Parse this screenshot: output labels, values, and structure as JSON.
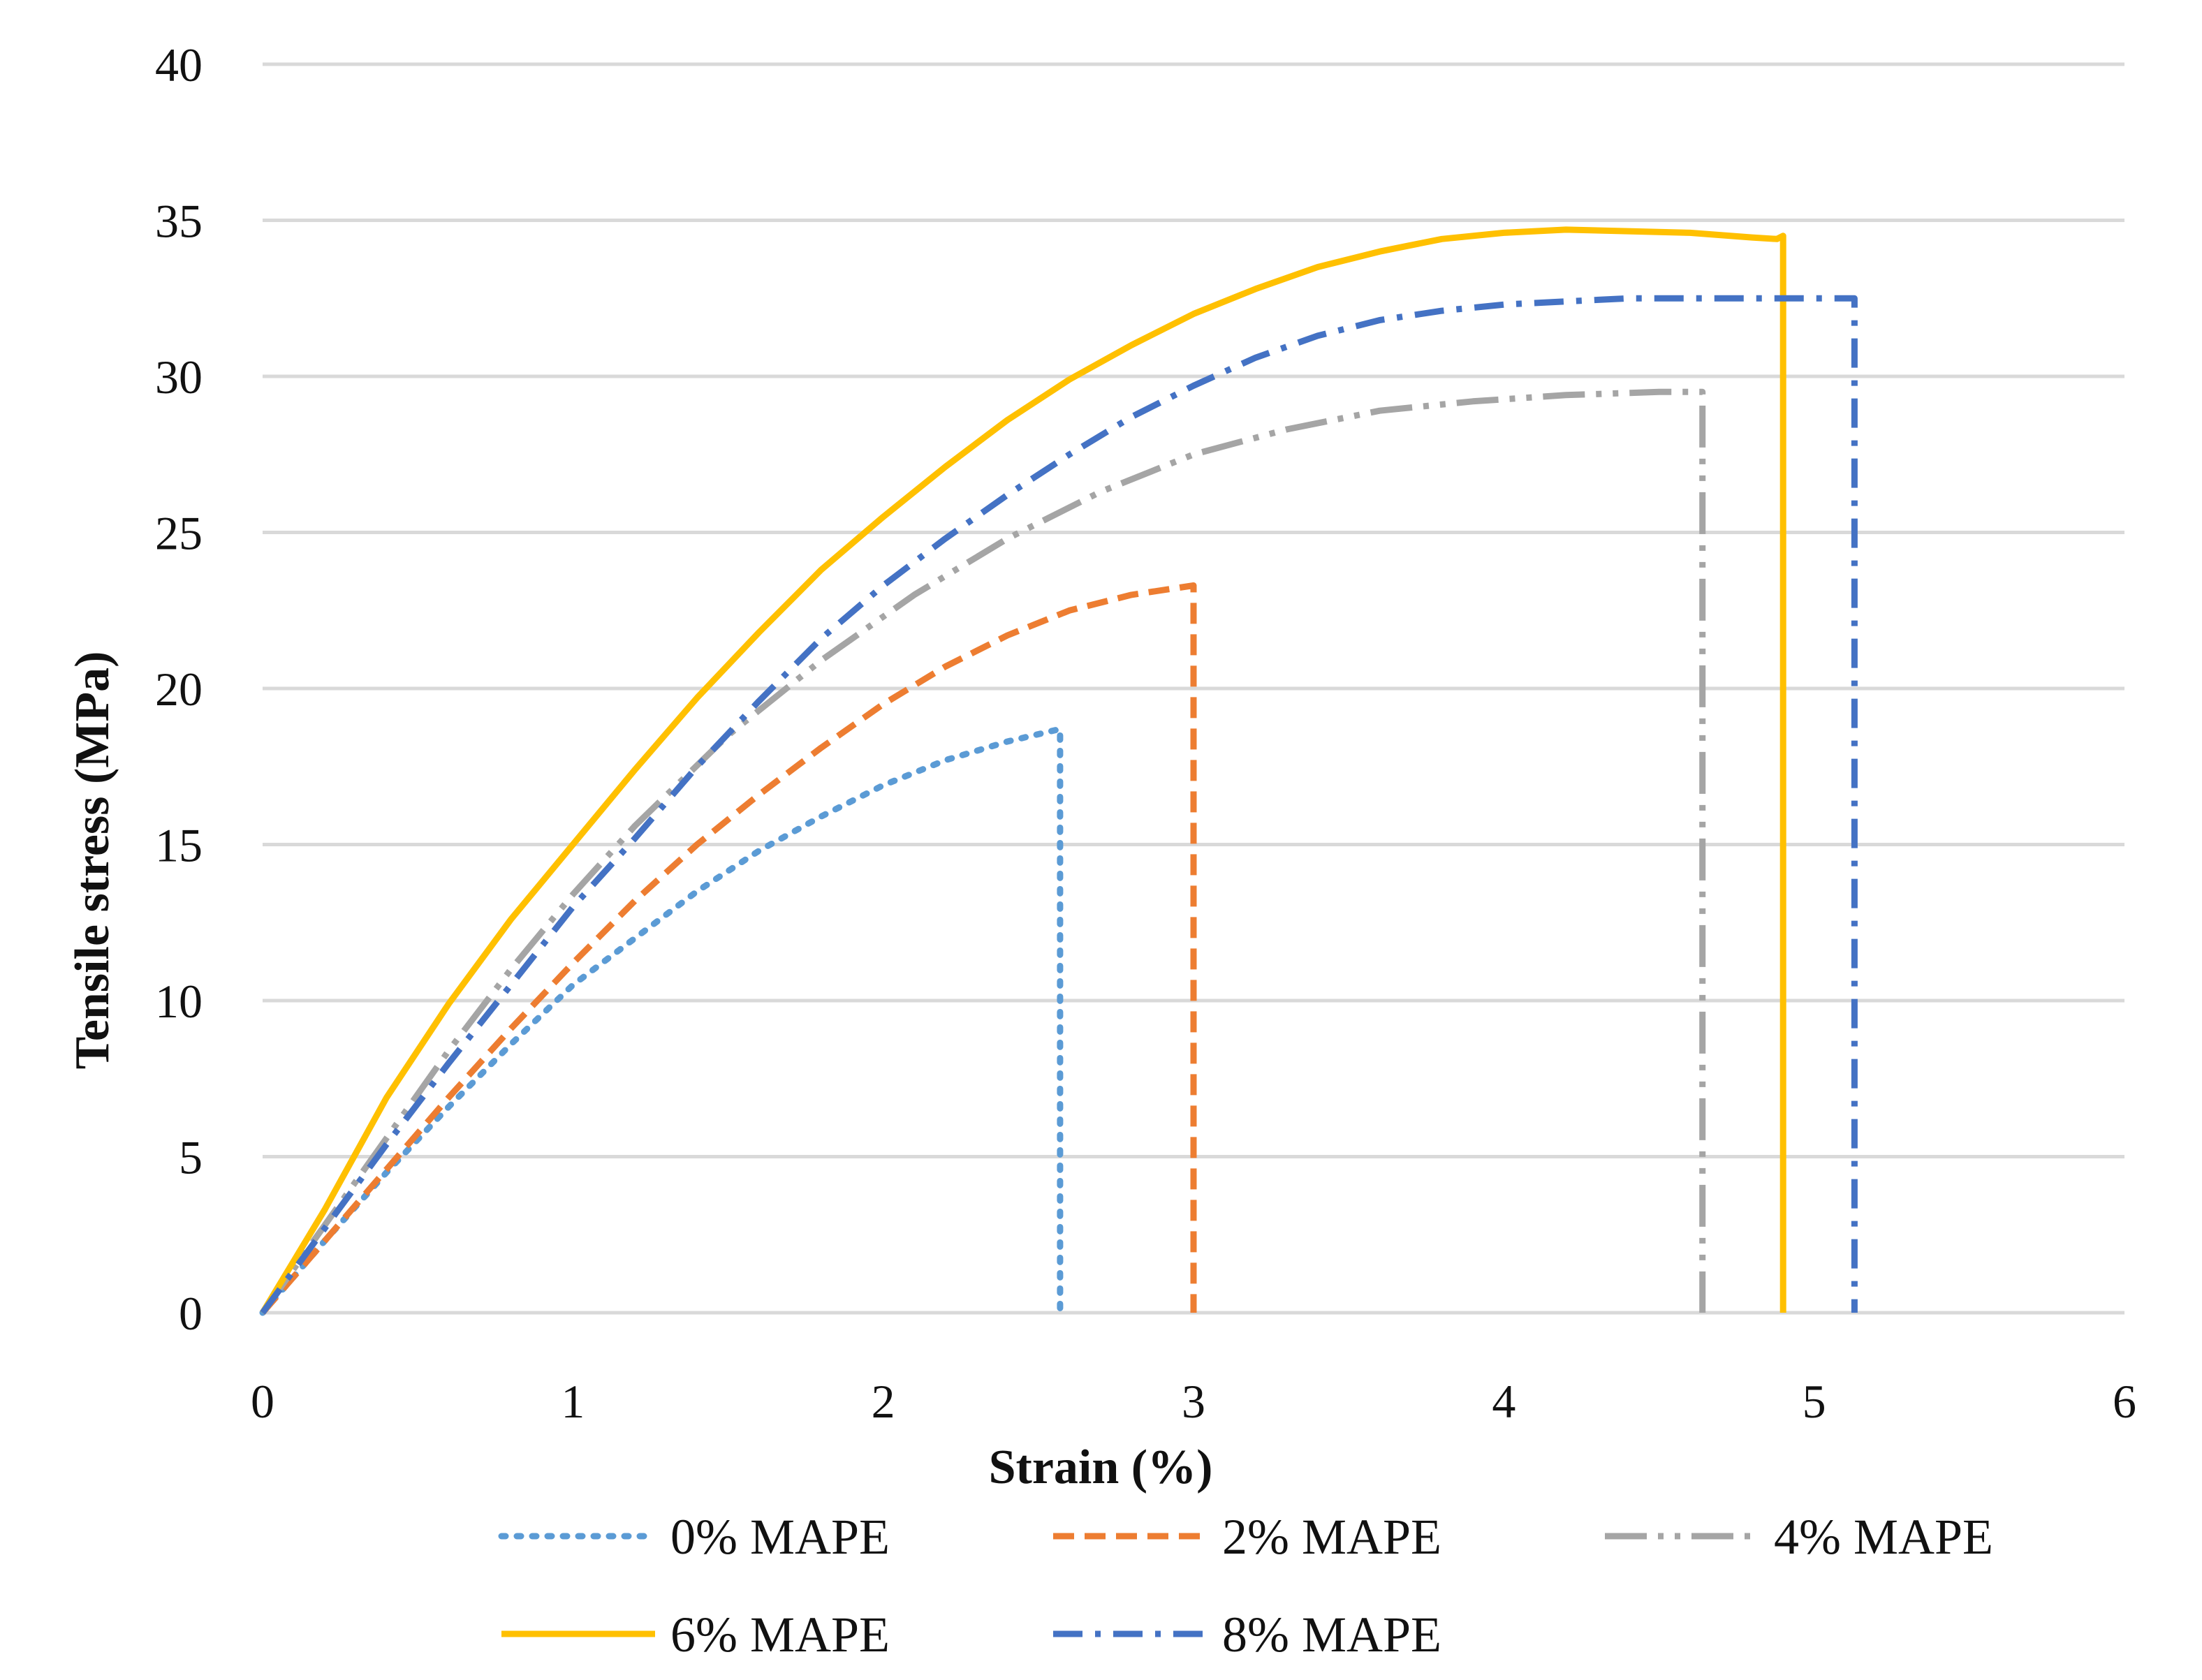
{
  "chart_data": {
    "type": "line",
    "title": "",
    "xlabel": "Strain (%)",
    "ylabel": "Tensile stress (MPa)",
    "xlim": [
      0,
      6
    ],
    "ylim": [
      0,
      40
    ],
    "x_ticks": [
      "0",
      "1",
      "2",
      "3",
      "4",
      "5",
      "6"
    ],
    "y_ticks": [
      "0",
      "5",
      "10",
      "15",
      "20",
      "25",
      "30",
      "35",
      "40"
    ],
    "grid": "horizontal",
    "legend_position": "bottom",
    "series": [
      {
        "name": "0% MAPE",
        "color": "#5B9BD5",
        "dash": "dot",
        "x": [
          0,
          0.2,
          0.4,
          0.6,
          0.8,
          1.0,
          1.2,
          1.4,
          1.6,
          1.8,
          2.0,
          2.2,
          2.4,
          2.57,
          2.57
        ],
        "y": [
          0,
          2.3,
          4.5,
          6.6,
          8.6,
          10.5,
          12.0,
          13.5,
          14.8,
          15.9,
          16.9,
          17.7,
          18.3,
          18.7,
          0
        ]
      },
      {
        "name": "2% MAPE",
        "color": "#ED7D31",
        "dash": "dash",
        "x": [
          0,
          0.2,
          0.4,
          0.6,
          0.8,
          1.0,
          1.2,
          1.4,
          1.6,
          1.8,
          2.0,
          2.2,
          2.4,
          2.6,
          2.8,
          3.0,
          3.0
        ],
        "y": [
          0,
          2.3,
          4.6,
          6.9,
          9.1,
          11.2,
          13.2,
          15.0,
          16.6,
          18.1,
          19.5,
          20.7,
          21.7,
          22.5,
          23.0,
          23.3,
          0
        ]
      },
      {
        "name": "4% MAPE",
        "color": "#A5A5A5",
        "dash": "longdashdotdot",
        "x": [
          0,
          0.2,
          0.4,
          0.6,
          0.8,
          1.0,
          1.2,
          1.5,
          1.8,
          2.1,
          2.4,
          2.7,
          3.0,
          3.3,
          3.6,
          3.9,
          4.2,
          4.5,
          4.64,
          4.64
        ],
        "y": [
          0,
          2.8,
          5.6,
          8.4,
          11.0,
          13.4,
          15.6,
          18.5,
          20.9,
          23.0,
          24.8,
          26.3,
          27.5,
          28.3,
          28.9,
          29.2,
          29.4,
          29.5,
          29.5,
          0
        ]
      },
      {
        "name": "6% MAPE",
        "color": "#FFC000",
        "dash": "solid",
        "x": [
          0,
          0.2,
          0.4,
          0.6,
          0.8,
          1.0,
          1.2,
          1.4,
          1.6,
          1.8,
          2.0,
          2.2,
          2.4,
          2.6,
          2.8,
          3.0,
          3.2,
          3.4,
          3.6,
          3.8,
          4.0,
          4.2,
          4.4,
          4.6,
          4.8,
          4.88,
          4.9,
          4.9
        ],
        "y": [
          0,
          3.3,
          6.9,
          9.9,
          12.6,
          15.0,
          17.4,
          19.7,
          21.8,
          23.8,
          25.5,
          27.1,
          28.6,
          29.9,
          31.0,
          32.0,
          32.8,
          33.5,
          34.0,
          34.4,
          34.6,
          34.7,
          34.65,
          34.6,
          34.45,
          34.4,
          34.5,
          0
        ]
      },
      {
        "name": "8% MAPE",
        "color": "#4472C4",
        "dash": "dashdot",
        "x": [
          0,
          0.2,
          0.4,
          0.6,
          0.8,
          1.0,
          1.2,
          1.4,
          1.6,
          1.8,
          2.0,
          2.2,
          2.4,
          2.6,
          2.8,
          3.0,
          3.2,
          3.4,
          3.6,
          3.8,
          4.0,
          4.2,
          4.4,
          4.6,
          4.8,
          5.0,
          5.13,
          5.13
        ],
        "y": [
          0,
          2.7,
          5.4,
          8.0,
          10.5,
          13.0,
          15.2,
          17.5,
          19.6,
          21.6,
          23.3,
          24.8,
          26.2,
          27.5,
          28.7,
          29.7,
          30.6,
          31.3,
          31.8,
          32.1,
          32.3,
          32.4,
          32.5,
          32.5,
          32.5,
          32.5,
          32.5,
          0
        ]
      }
    ]
  }
}
